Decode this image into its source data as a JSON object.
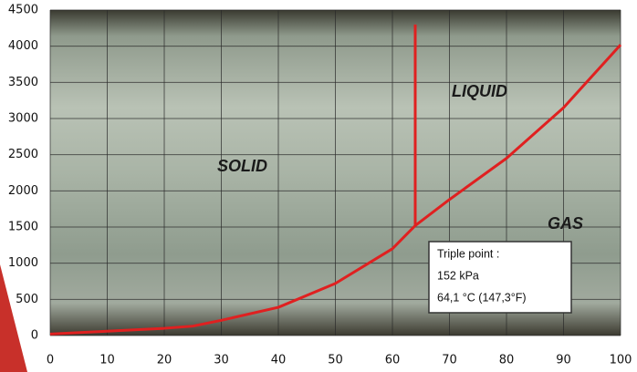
{
  "chart_data": {
    "type": "line",
    "series": [
      {
        "color": "#e02020",
        "x": [
          0,
          10,
          20,
          25,
          30,
          40,
          50,
          60,
          64,
          70,
          80,
          90,
          100
        ],
        "values": [
          20,
          60,
          100,
          130,
          210,
          390,
          720,
          1200,
          1520,
          1880,
          2450,
          3150,
          4020
        ]
      },
      {
        "color": "#e02020",
        "x": [
          64,
          64
        ],
        "values": [
          1520,
          4300
        ]
      }
    ],
    "regions": [
      "SOLID",
      "LIQUID",
      "GAS"
    ],
    "annotation": {
      "lines": [
        "Triple point :",
        "152 kPa",
        "64,1  °C (147,3°F)"
      ]
    },
    "xlim": [
      0,
      100
    ],
    "xticks": [
      0,
      10,
      20,
      30,
      40,
      50,
      60,
      70,
      80,
      90,
      100
    ],
    "ylim": [
      0,
      4500
    ],
    "yticks": [
      0,
      500,
      1000,
      1500,
      2000,
      2500,
      3000,
      3500,
      4000,
      4500
    ],
    "grid": true
  }
}
